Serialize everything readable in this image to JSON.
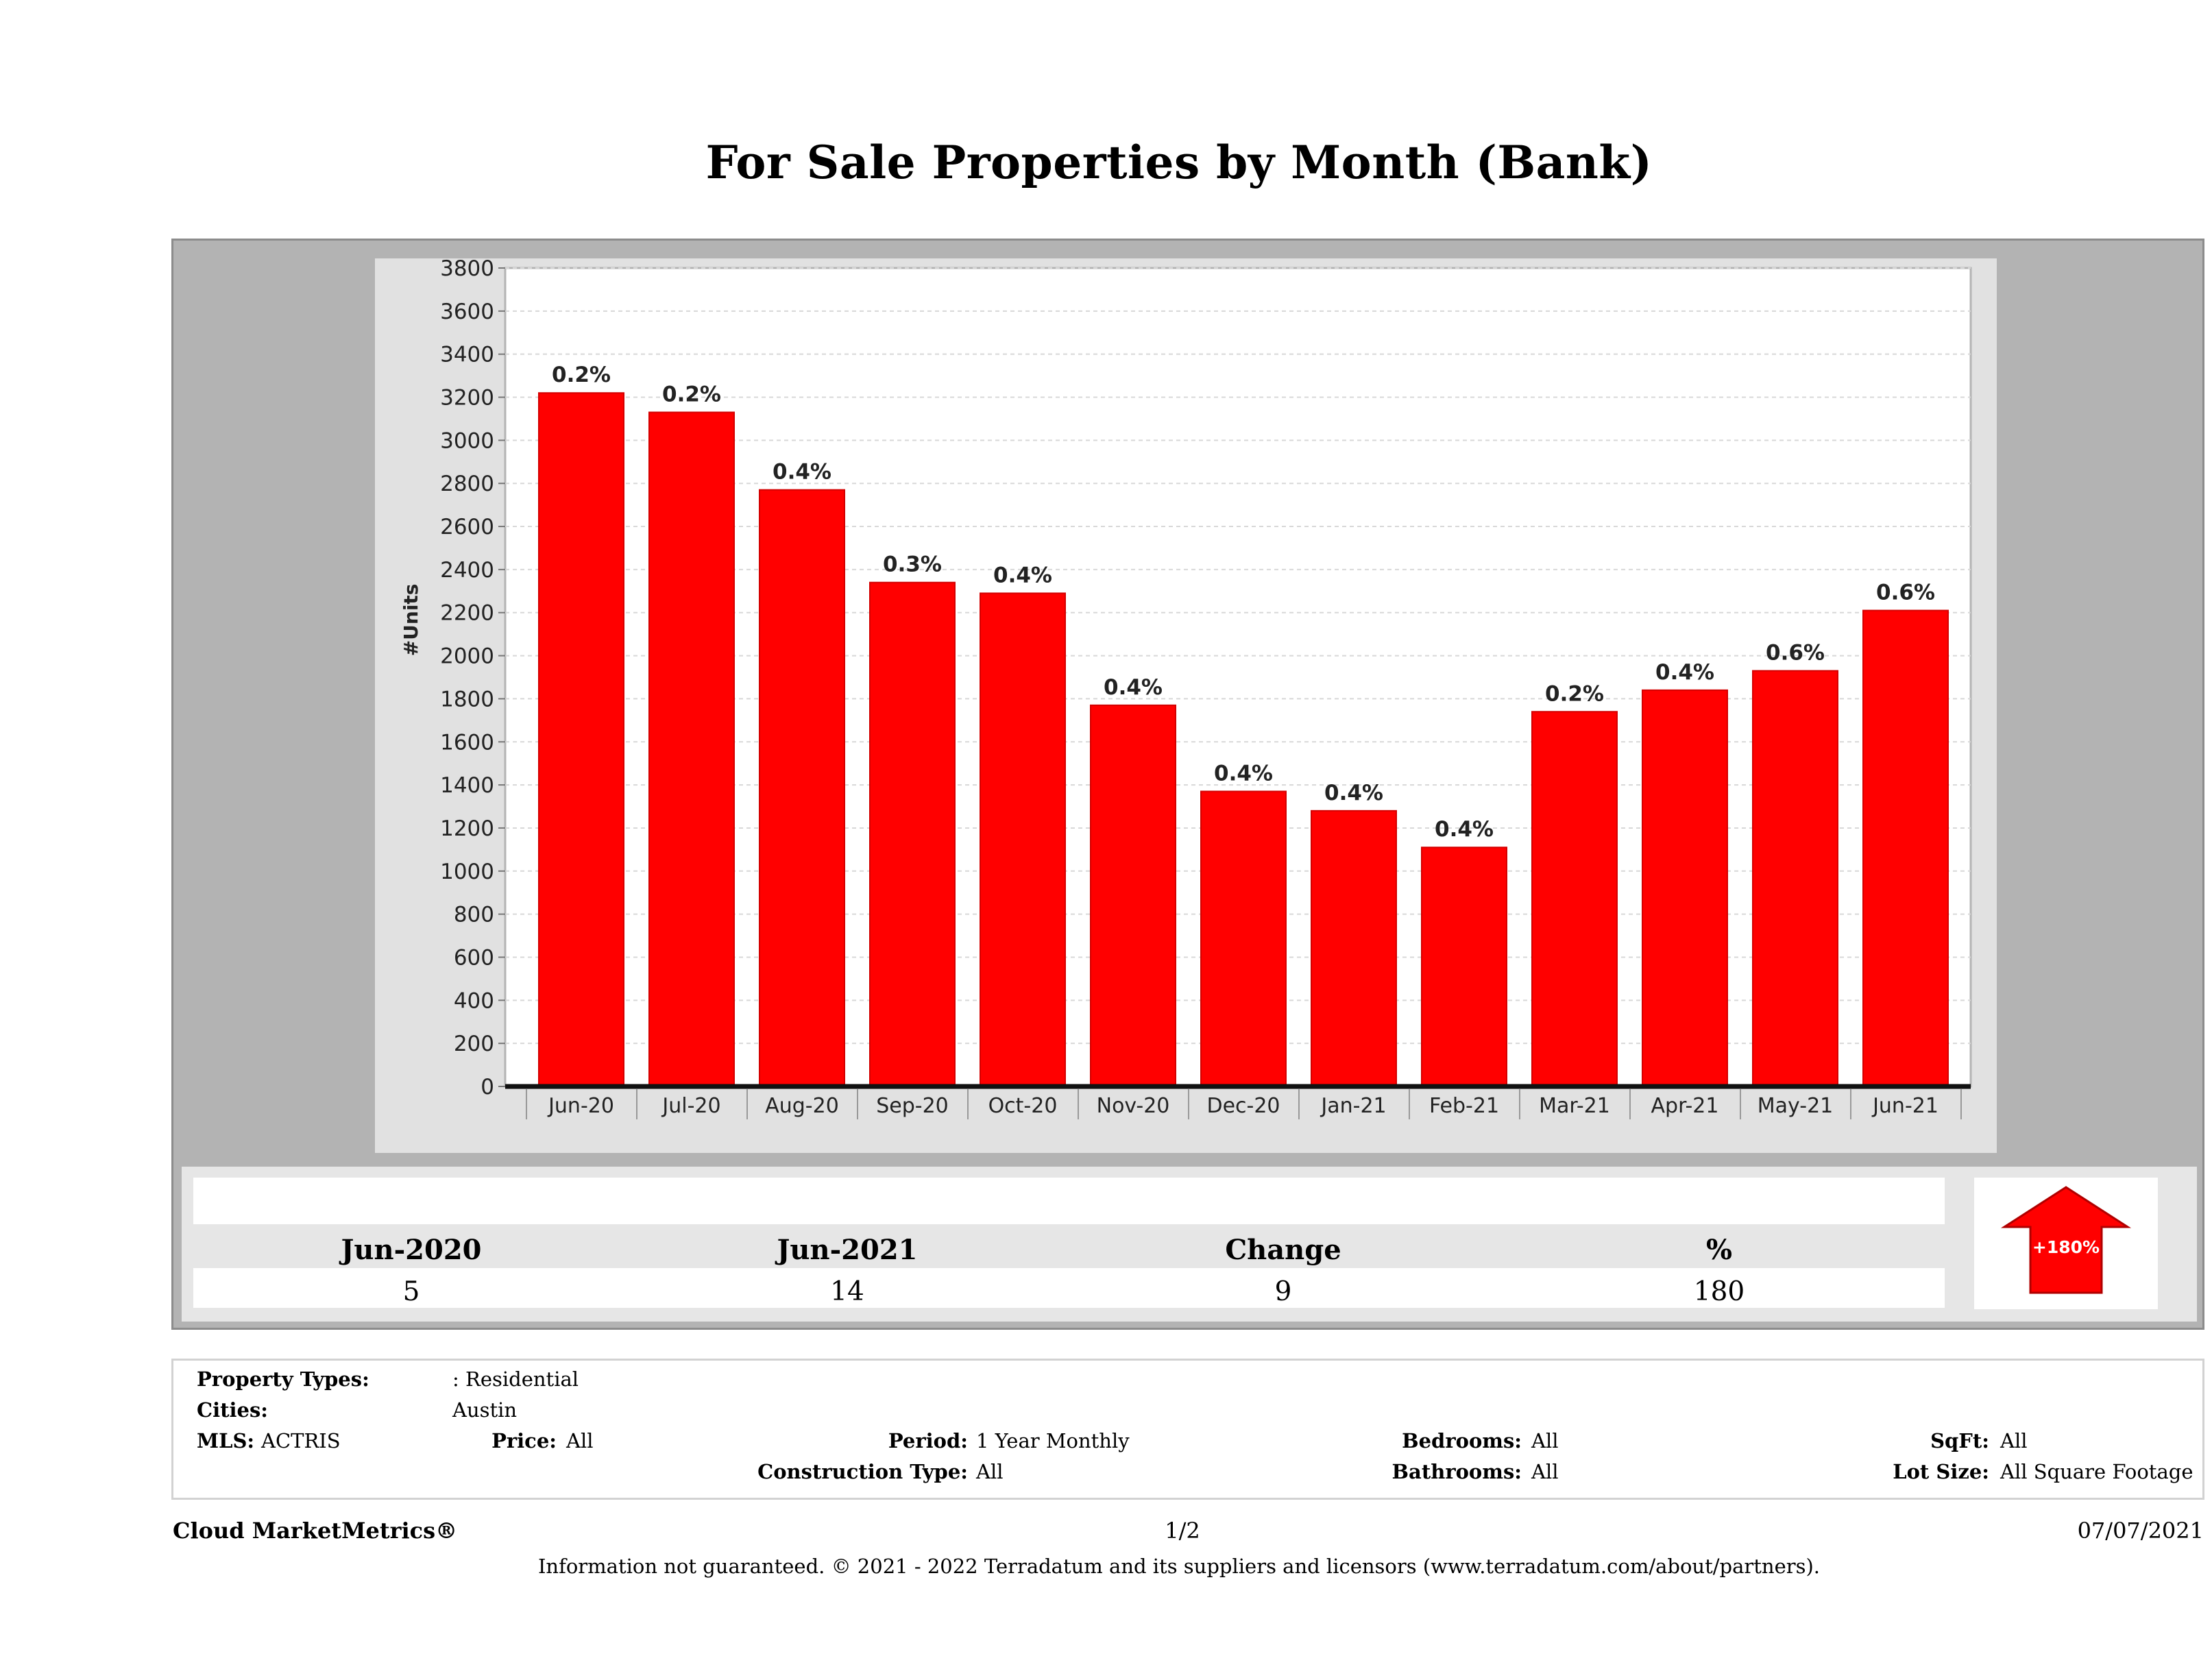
{
  "title": "For Sale Properties by Month (Bank)",
  "colors": {
    "bar": "#ff0000",
    "bar_edge": "#d40000",
    "frame": "#b3b3b3",
    "panel": "#e1e1e1"
  },
  "chart_data": {
    "type": "bar",
    "categories": [
      "Jun-20",
      "Jul-20",
      "Aug-20",
      "Sep-20",
      "Oct-20",
      "Nov-20",
      "Dec-20",
      "Jan-21",
      "Feb-21",
      "Mar-21",
      "Apr-21",
      "May-21",
      "Jun-21"
    ],
    "values": [
      3220,
      3130,
      2770,
      2340,
      2290,
      1770,
      1370,
      1280,
      1110,
      1740,
      1840,
      1930,
      2210
    ],
    "data_labels": [
      "0.2%",
      "0.2%",
      "0.4%",
      "0.3%",
      "0.4%",
      "0.4%",
      "0.4%",
      "0.4%",
      "0.4%",
      "0.2%",
      "0.4%",
      "0.6%",
      "0.6%"
    ],
    "ylabel": "#Units",
    "ylim": [
      0,
      3800
    ],
    "yticks": [
      0,
      200,
      400,
      600,
      800,
      1000,
      1200,
      1400,
      1600,
      1800,
      2000,
      2200,
      2400,
      2600,
      2800,
      3000,
      3200,
      3400,
      3600,
      3800
    ],
    "grid": true
  },
  "summary": {
    "headers": [
      "Jun-2020",
      "Jun-2021",
      "Change",
      "%"
    ],
    "values": [
      "5",
      "14",
      "9",
      "180"
    ],
    "arrow_label": "+180%"
  },
  "params": {
    "property_types_label": "Property Types:",
    "property_types_value": ": Residential",
    "cities_label": "Cities:",
    "cities_value": "Austin",
    "mls_label": "MLS:",
    "mls_value": "ACTRIS",
    "price_label": "Price:",
    "price_value": "All",
    "period_label": "Period:",
    "period_value": "1 Year Monthly",
    "construction_label": "Construction Type:",
    "construction_value": "All",
    "bedrooms_label": "Bedrooms:",
    "bedrooms_value": "All",
    "bathrooms_label": "Bathrooms:",
    "bathrooms_value": "All",
    "sqft_label": "SqFt:",
    "sqft_value": "All",
    "lotsize_label": "Lot Size:",
    "lotsize_value": "All Square Footage"
  },
  "footer": {
    "brand": "Cloud MarketMetrics®",
    "page": "1/2",
    "date": "07/07/2021",
    "disclaimer": "Information not guaranteed. © 2021 - 2022 Terradatum and its suppliers and licensors (www.terradatum.com/about/partners)."
  }
}
